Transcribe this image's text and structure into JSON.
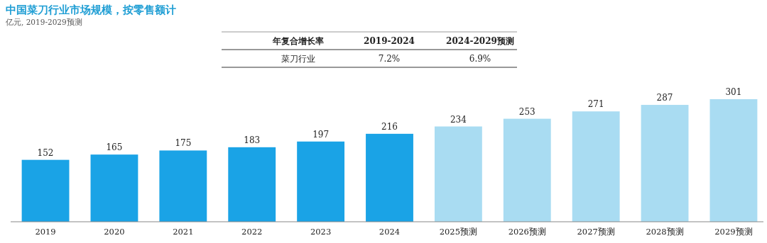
{
  "chart_data": {
    "type": "bar",
    "title": "中国菜刀行业市场规模，按零售额计",
    "subtitle": "亿元, 2019-2029预测",
    "categories": [
      "2019",
      "2020",
      "2021",
      "2022",
      "2023",
      "2024",
      "2025预测",
      "2026预测",
      "2027预测",
      "2028预测",
      "2029预测"
    ],
    "values": [
      152,
      165,
      175,
      183,
      197,
      216,
      234,
      253,
      271,
      287,
      301
    ],
    "colors": [
      "#1aa3e6",
      "#1aa3e6",
      "#1aa3e6",
      "#1aa3e6",
      "#1aa3e6",
      "#1aa3e6",
      "#a9dcf2",
      "#a9dcf2",
      "#a9dcf2",
      "#a9dcf2",
      "#a9dcf2"
    ],
    "data_labels": true,
    "annotations": [
      "年复合增长率",
      "2019-2024",
      "2024-2029预测",
      "菜刀行业",
      "7.2%",
      "6.9%"
    ]
  }
}
